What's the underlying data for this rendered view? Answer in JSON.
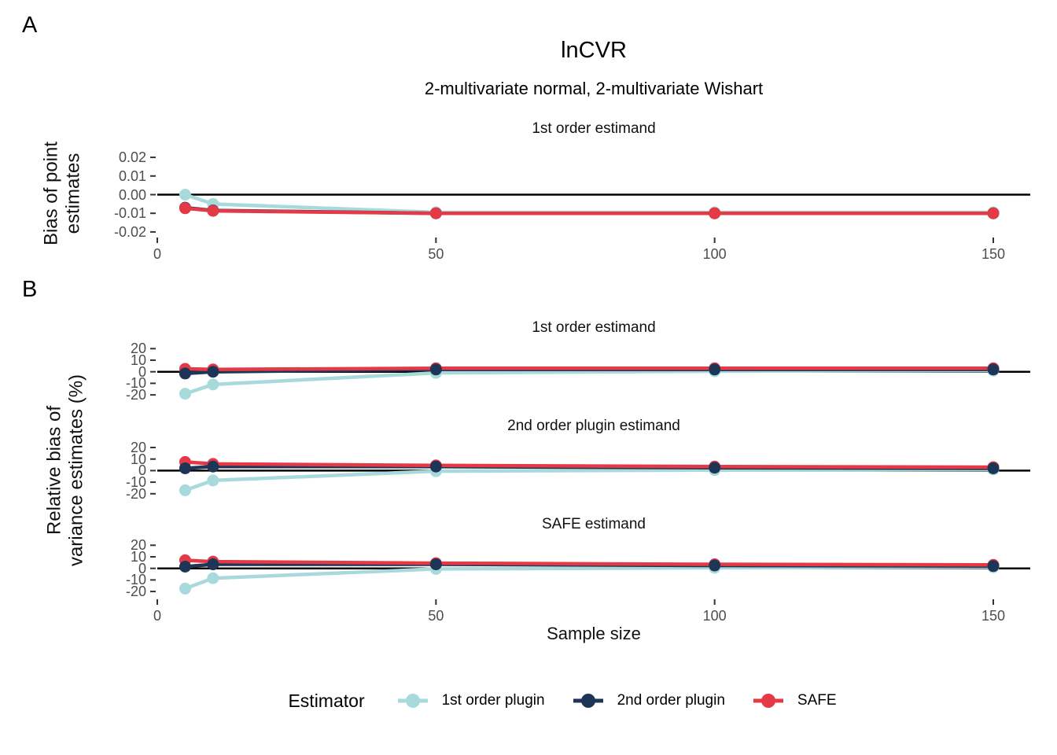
{
  "panels": {
    "a_label": "A",
    "b_label": "B"
  },
  "title": "lnCVR",
  "subtitle": "2-multivariate normal, 2-multivariate Wishart",
  "y_axis_a": {
    "line1": "Bias of point",
    "line2": "estimates"
  },
  "y_axis_b": {
    "line1": "Relative bias of",
    "line2": "variance estimates (%)"
  },
  "x_axis_label": "Sample size",
  "legend": {
    "title": "Estimator",
    "items": [
      {
        "label": "1st order plugin",
        "color": "#A8DADC"
      },
      {
        "label": "2nd order plugin",
        "color": "#1D3557"
      },
      {
        "label": "SAFE",
        "color": "#E63946"
      }
    ]
  },
  "colors": {
    "teal": "#A8DADC",
    "navy": "#1D3557",
    "red": "#E63946",
    "zero_line": "#000000",
    "tick_mark": "#333333",
    "tick_text": "#4d4d4d"
  },
  "chart_data": [
    {
      "type": "line",
      "panel": "A",
      "title": "1st order estimand",
      "xlabel": "Sample size",
      "ylabel": "Bias of point estimates",
      "x": [
        5,
        10,
        50,
        100,
        150
      ],
      "x_ticks": [
        0,
        50,
        100,
        150
      ],
      "x_tick_labels": [
        "0",
        "50",
        "100",
        "150"
      ],
      "xlim": [
        0,
        157
      ],
      "y_ticks": [
        0.02,
        0.01,
        0,
        -0.01,
        -0.02
      ],
      "y_tick_labels": [
        "0.02",
        "0.01",
        "0.00",
        "-0.01",
        "-0.02"
      ],
      "ylim": [
        -0.025,
        0.025
      ],
      "grid": false,
      "zero_line": true,
      "series": [
        {
          "name": "1st order plugin",
          "values": [
            0.0,
            -0.005,
            -0.0095,
            -0.0095,
            -0.0095
          ]
        },
        {
          "name": "2nd order plugin",
          "values": [
            -0.007,
            -0.0085,
            -0.01,
            -0.01,
            -0.01
          ]
        },
        {
          "name": "SAFE",
          "values": [
            -0.0073,
            -0.0087,
            -0.01,
            -0.01,
            -0.01
          ]
        }
      ]
    },
    {
      "type": "line",
      "panel": "B",
      "title": "1st order estimand",
      "xlabel": "Sample size",
      "ylabel": "Relative bias of variance estimates (%)",
      "x": [
        5,
        10,
        50,
        100,
        150
      ],
      "x_ticks": [
        0,
        50,
        100,
        150
      ],
      "x_tick_labels": [
        "0",
        "50",
        "100",
        "150"
      ],
      "xlim": [
        0,
        157
      ],
      "y_ticks": [
        20,
        10,
        0,
        -10,
        -20
      ],
      "y_tick_labels": [
        "20",
        "10",
        "0",
        "-10",
        "-20"
      ],
      "ylim": [
        -25,
        25
      ],
      "grid": false,
      "zero_line": true,
      "series": [
        {
          "name": "1st order plugin",
          "values": [
            -19,
            -11,
            -1,
            0.5,
            1
          ]
        },
        {
          "name": "2nd order plugin",
          "values": [
            -1.5,
            0,
            2,
            2,
            2
          ]
        },
        {
          "name": "SAFE",
          "values": [
            2.5,
            2,
            3,
            3,
            3
          ]
        }
      ]
    },
    {
      "type": "line",
      "panel": "B",
      "title": "2nd order plugin estimand",
      "xlabel": "Sample size",
      "ylabel": "Relative bias of variance estimates (%)",
      "x": [
        5,
        10,
        50,
        100,
        150
      ],
      "x_ticks": [
        0,
        50,
        100,
        150
      ],
      "x_tick_labels": [
        "0",
        "50",
        "100",
        "150"
      ],
      "xlim": [
        0,
        157
      ],
      "y_ticks": [
        20,
        10,
        0,
        -10,
        -20
      ],
      "y_tick_labels": [
        "20",
        "10",
        "0",
        "-10",
        "-20"
      ],
      "ylim": [
        -25,
        25
      ],
      "grid": false,
      "zero_line": true,
      "series": [
        {
          "name": "1st order plugin",
          "values": [
            -17,
            -8.5,
            -0.5,
            0.5,
            1
          ]
        },
        {
          "name": "2nd order plugin",
          "values": [
            2,
            3.5,
            3.5,
            2.5,
            2
          ]
        },
        {
          "name": "SAFE",
          "values": [
            7.5,
            5.8,
            4.5,
            3.5,
            3
          ]
        }
      ]
    },
    {
      "type": "line",
      "panel": "B",
      "title": "SAFE estimand",
      "xlabel": "Sample size",
      "ylabel": "Relative bias of variance estimates (%)",
      "x": [
        5,
        10,
        50,
        100,
        150
      ],
      "x_ticks": [
        0,
        50,
        100,
        150
      ],
      "x_tick_labels": [
        "0",
        "50",
        "100",
        "150"
      ],
      "xlim": [
        0,
        157
      ],
      "y_ticks": [
        20,
        10,
        0,
        -10,
        -20
      ],
      "y_tick_labels": [
        "20",
        "10",
        "0",
        "-10",
        "-20"
      ],
      "ylim": [
        -25,
        25
      ],
      "grid": false,
      "zero_line": true,
      "series": [
        {
          "name": "1st order plugin",
          "values": [
            -17.5,
            -8.5,
            -0.5,
            0.5,
            1
          ]
        },
        {
          "name": "2nd order plugin",
          "values": [
            1.5,
            3.5,
            3.5,
            2.5,
            2
          ]
        },
        {
          "name": "SAFE",
          "values": [
            7,
            5.8,
            4.5,
            3.5,
            3
          ]
        }
      ]
    }
  ]
}
